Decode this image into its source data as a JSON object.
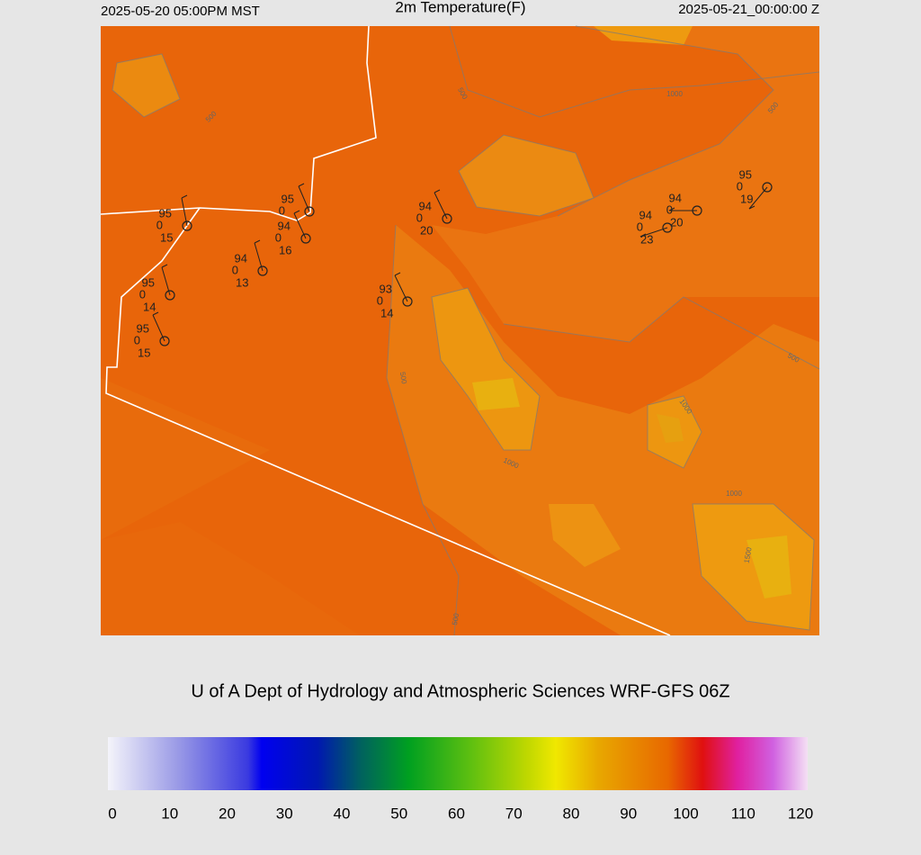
{
  "header": {
    "left": "2025-05-20 05:00PM MST",
    "title": "2m Temperature(F)",
    "right": "2025-05-21_00:00:00 Z"
  },
  "stations": [
    {
      "temp": "95",
      "dew": "0",
      "wind": "15"
    },
    {
      "temp": "95",
      "dew": "0"
    },
    {
      "temp": "94",
      "dew": "0",
      "wind": "16"
    },
    {
      "temp": "94",
      "dew": "0",
      "wind": "13"
    },
    {
      "temp": "95",
      "dew": "0",
      "wind": "14"
    },
    {
      "temp": "95",
      "dew": "0",
      "wind": "15"
    },
    {
      "temp": "93",
      "dew": "0",
      "wind": "14"
    },
    {
      "temp": "94",
      "dew": "0",
      "wind": "20"
    },
    {
      "temp": "94",
      "dew": "0",
      "wind": "20"
    },
    {
      "temp": "94",
      "dew": "0",
      "wind": "23"
    },
    {
      "temp": "95",
      "dew": "0",
      "wind": "19"
    }
  ],
  "contour_labels": [
    "500",
    "1000",
    "500",
    "500",
    "500",
    "1000",
    "1000",
    "1000",
    "500",
    "1500",
    "500"
  ],
  "footer": "U of A Dept of Hydrology and Atmospheric Sciences WRF-GFS 06Z",
  "colorbar": {
    "range": [
      0,
      120
    ],
    "ticks": [
      0,
      10,
      20,
      30,
      40,
      50,
      60,
      70,
      80,
      90,
      100,
      110,
      120
    ]
  }
}
